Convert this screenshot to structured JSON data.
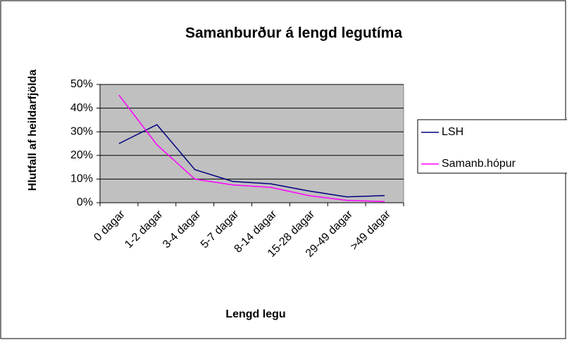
{
  "chart_data": {
    "type": "line",
    "title": "Samanburður á lengd legutíma",
    "x_label": "Lengd legu",
    "y_label": "Hlutfall af heildarfjölda",
    "categories": [
      "0 dagar",
      "1-2 dagar",
      "3-4 dagar",
      "5-7 dagar",
      "8-14 dagar",
      "15-28 dagar",
      "29-49 dagar",
      ">49 dagar"
    ],
    "series": [
      {
        "name": "LSH",
        "color": "#000080",
        "values": [
          25,
          33,
          14,
          9,
          8,
          5,
          2.5,
          3
        ]
      },
      {
        "name": "Samanb.hópur",
        "color": "#ff00ff",
        "values": [
          45.5,
          24.5,
          10,
          7.5,
          6.5,
          3,
          1,
          0.5
        ]
      }
    ],
    "ylim": [
      0,
      50
    ],
    "yticks": [
      {
        "value": 0,
        "label": "0%"
      },
      {
        "value": 10,
        "label": "10%"
      },
      {
        "value": 20,
        "label": "20%"
      },
      {
        "value": 30,
        "label": "30%"
      },
      {
        "value": 40,
        "label": "40%"
      },
      {
        "value": 50,
        "label": "50%"
      }
    ],
    "grid": true,
    "legend": "right"
  }
}
